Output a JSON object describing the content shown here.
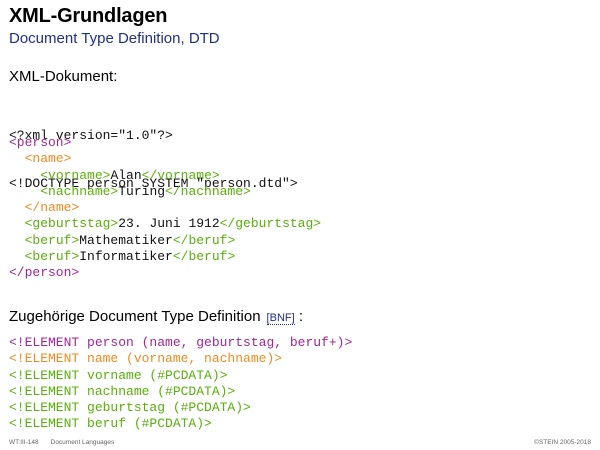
{
  "slide": {
    "title": "XML-Grundlagen",
    "subtitle": "Document Type Definition, DTD"
  },
  "xml_section": {
    "heading": "XML-Dokument:",
    "prolog": [
      "<?xml version=\"1.0\"?>",
      "<!DOCTYPE person SYSTEM \"person.dtd\">"
    ],
    "body": [
      {
        "indent": "",
        "open": "<person>",
        "text": "",
        "close": "",
        "color": "purple"
      },
      {
        "indent": "  ",
        "open": "<name>",
        "text": "",
        "close": "",
        "color": "orange"
      },
      {
        "indent": "    ",
        "open": "<vorname>",
        "text": "Alan",
        "close": "</vorname>",
        "color": "green"
      },
      {
        "indent": "    ",
        "open": "<nachname>",
        "text": "Turing",
        "close": "</nachname>",
        "color": "green"
      },
      {
        "indent": "  ",
        "open": "</name>",
        "text": "",
        "close": "",
        "color": "orange"
      },
      {
        "indent": "  ",
        "open": "<geburtstag>",
        "text": "23. Juni 1912",
        "close": "</geburtstag>",
        "color": "green"
      },
      {
        "indent": "  ",
        "open": "<beruf>",
        "text": "Mathematiker",
        "close": "</beruf>",
        "color": "green"
      },
      {
        "indent": "  ",
        "open": "<beruf>",
        "text": "Informatiker",
        "close": "</beruf>",
        "color": "green"
      },
      {
        "indent": "",
        "open": "</person>",
        "text": "",
        "close": "",
        "color": "purple"
      }
    ]
  },
  "dtd_section": {
    "heading": "Zugehörige Document Type Definition",
    "bnf_link": "[BNF]",
    "heading_suffix": ":",
    "lines": [
      {
        "text": "<!ELEMENT person (name, geburtstag, beruf+)>",
        "color": "purple"
      },
      {
        "text": "<!ELEMENT name (vorname, nachname)>",
        "color": "orange"
      },
      {
        "text": "<!ELEMENT vorname (#PCDATA)>",
        "color": "green"
      },
      {
        "text": "<!ELEMENT nachname (#PCDATA)>",
        "color": "green"
      },
      {
        "text": "<!ELEMENT geburtstag (#PCDATA)>",
        "color": "green"
      },
      {
        "text": "<!ELEMENT beruf (#PCDATA)>",
        "color": "green"
      }
    ]
  },
  "footer": {
    "slide_id": "WT:III-148",
    "course": "Document Languages",
    "copyright": "©STEIN 2005-2018"
  },
  "colors": {
    "subtitle": "#1f2f8c",
    "purple": "#a4259b",
    "green": "#58b10a",
    "orange": "#f28a20"
  }
}
